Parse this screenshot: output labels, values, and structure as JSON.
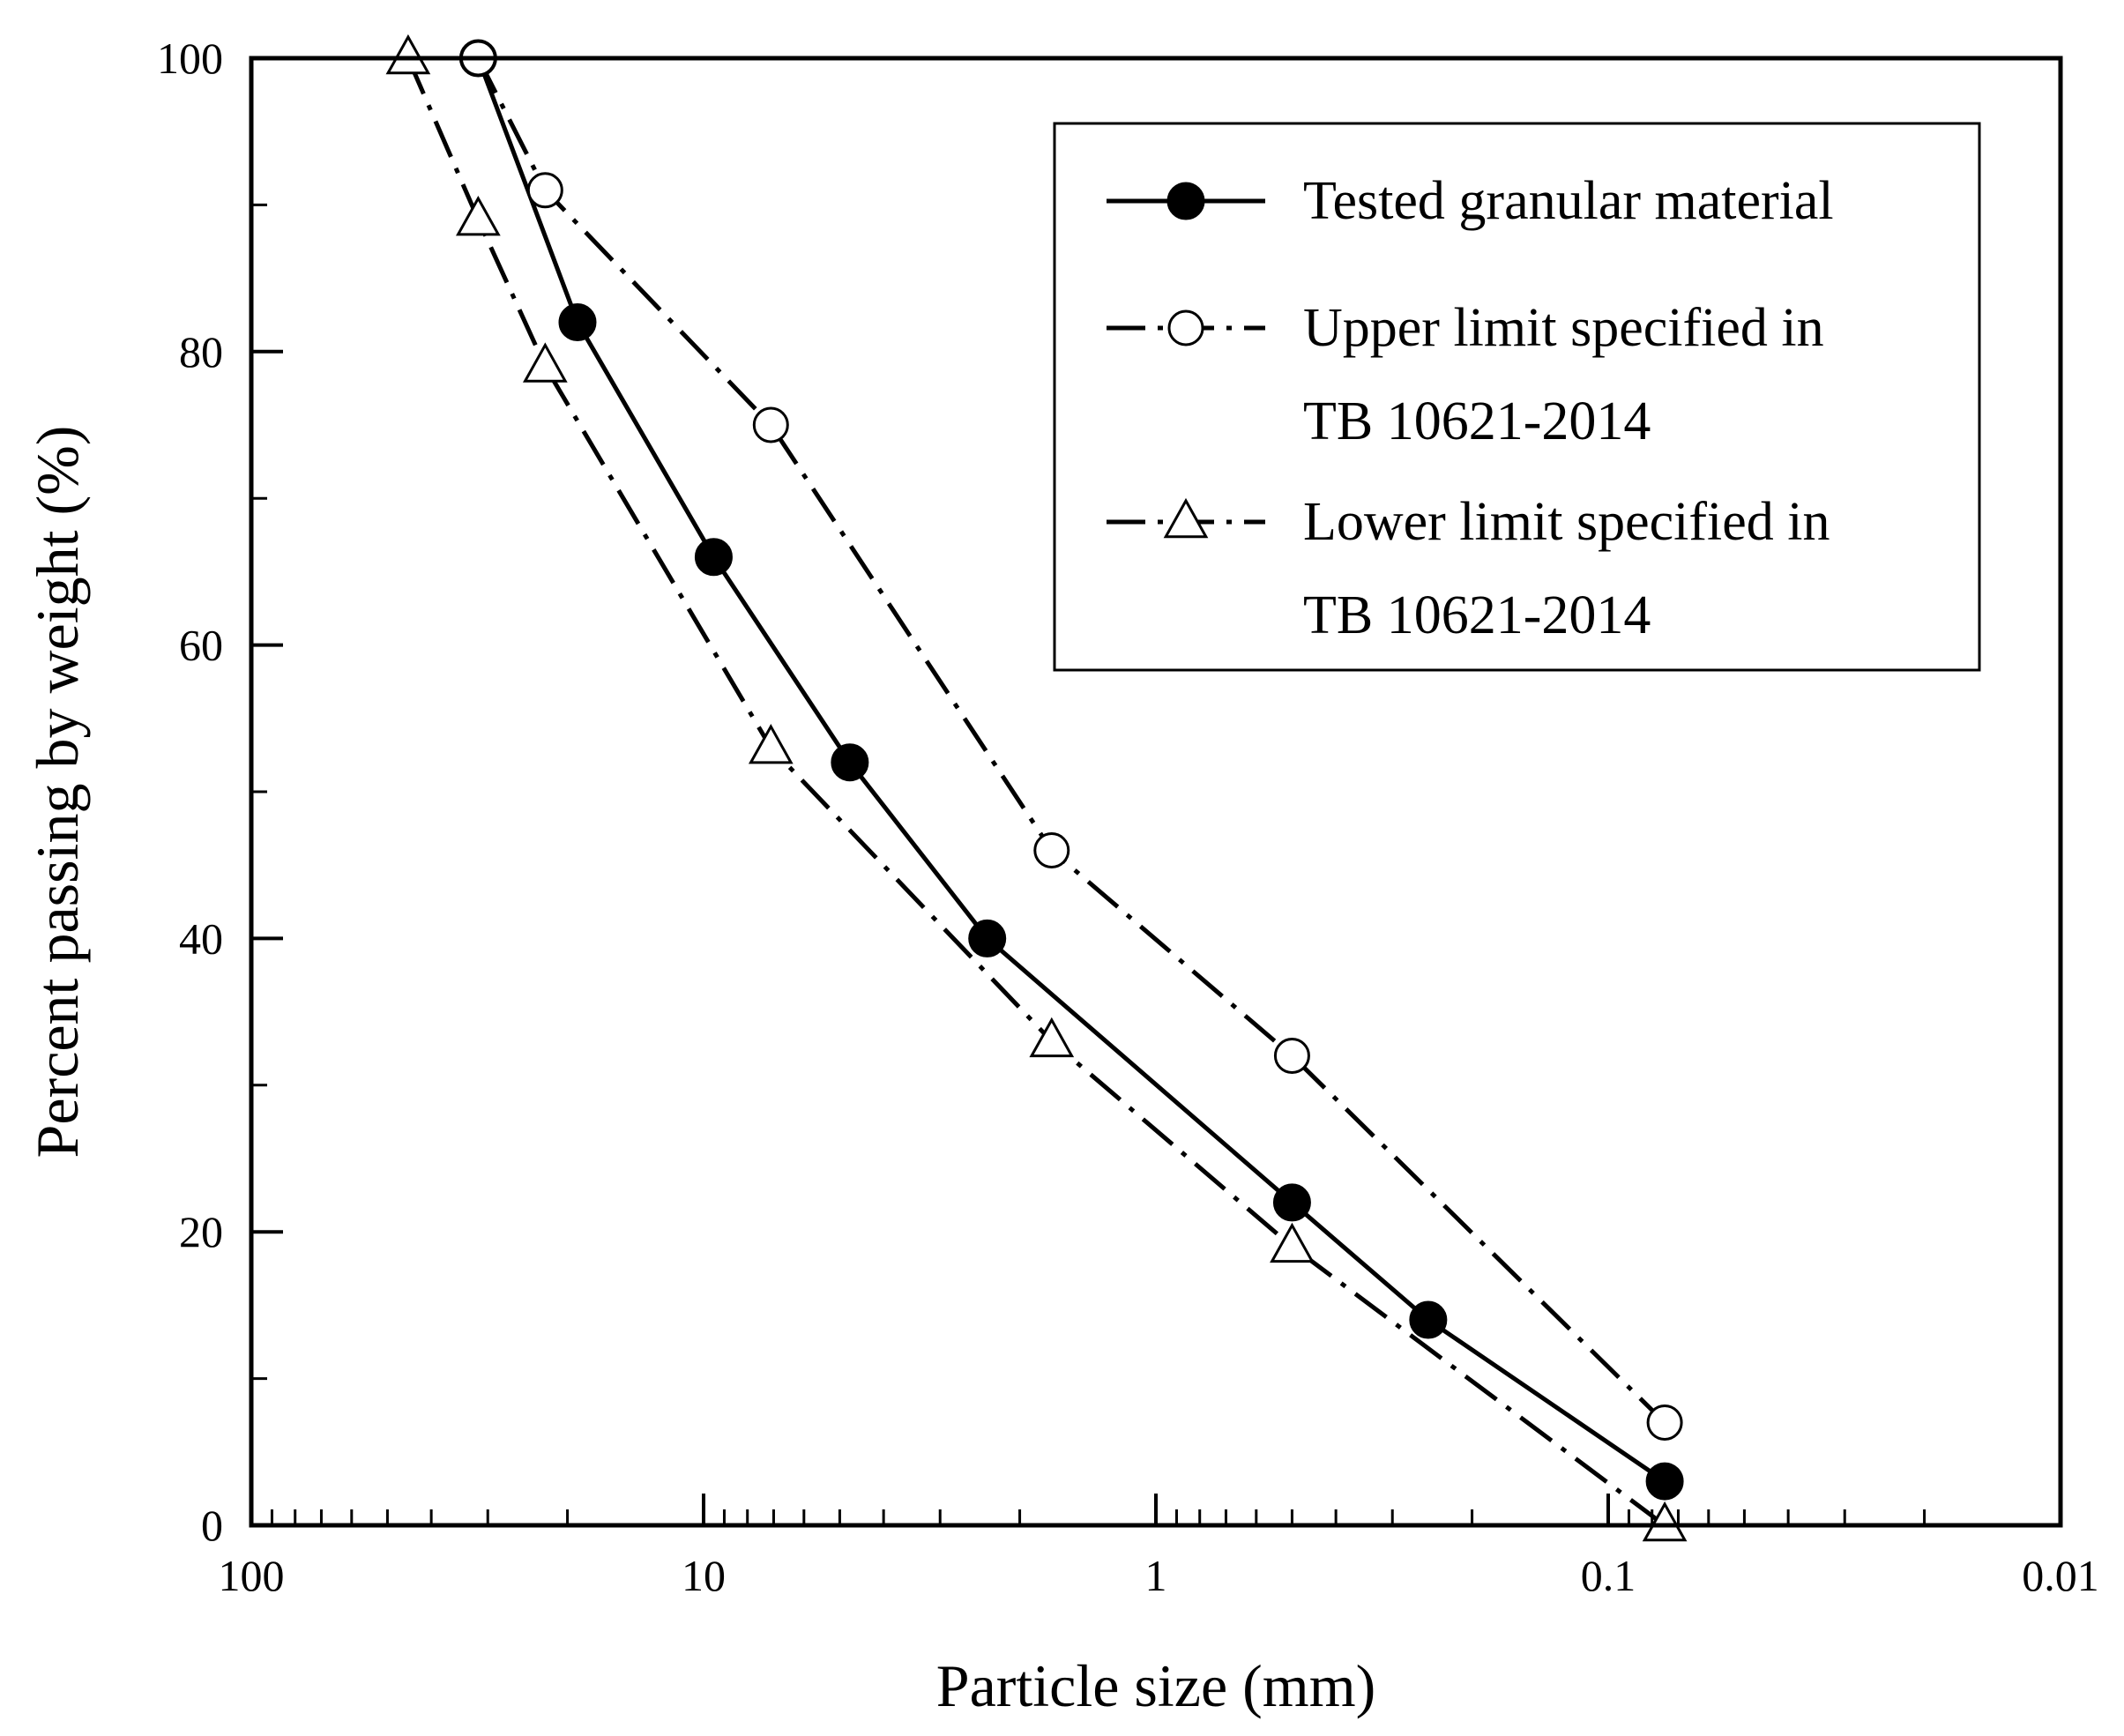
{
  "chart_data": {
    "type": "line",
    "xscale": "log",
    "xaxis_reversed": true,
    "xlabel": "Particle size (mm)",
    "ylabel": "Percent passing by weight (%)",
    "xlim": [
      100,
      0.01
    ],
    "ylim": [
      0,
      100
    ],
    "x_ticks": [
      {
        "value": 100,
        "label": "100"
      },
      {
        "value": 10,
        "label": "10"
      },
      {
        "value": 1,
        "label": "1"
      },
      {
        "value": 0.1,
        "label": "0.1"
      },
      {
        "value": 0.01,
        "label": "0.01"
      }
    ],
    "y_ticks": [
      {
        "value": 0,
        "label": "0"
      },
      {
        "value": 20,
        "label": "20"
      },
      {
        "value": 40,
        "label": "40"
      },
      {
        "value": 60,
        "label": "60"
      },
      {
        "value": 80,
        "label": "80"
      },
      {
        "value": 100,
        "label": "100"
      }
    ],
    "y_minor_ticks": [
      10,
      30,
      50,
      70,
      90
    ],
    "legend_position": "top-right",
    "series": [
      {
        "name": "Tested granular material",
        "legend_lines": [
          "Tested granular material"
        ],
        "marker": "filled-circle",
        "line_style": "solid",
        "x": [
          31.5,
          19,
          9.5,
          4.75,
          2.36,
          0.5,
          0.25,
          0.075
        ],
        "y": [
          100,
          82,
          66,
          52,
          40,
          22,
          14,
          3
        ]
      },
      {
        "name": "Upper limit specified in TB 10621-2014",
        "legend_lines": [
          "Upper limit specified in",
          "TB 10621-2014"
        ],
        "marker": "open-circle",
        "line_style": "dash-dot",
        "x": [
          31.5,
          22.4,
          7.1,
          1.7,
          0.5,
          0.075
        ],
        "y": [
          100,
          91,
          75,
          46,
          32,
          7
        ]
      },
      {
        "name": "Lower limit specified in TB 10621-2014",
        "legend_lines": [
          "Lower limit specified in",
          "TB 10621-2014"
        ],
        "marker": "open-triangle",
        "line_style": "dash-dot",
        "x": [
          45,
          31.5,
          22.4,
          7.1,
          1.7,
          0.5,
          0.075
        ],
        "y": [
          100,
          89,
          79,
          53,
          33,
          19,
          0
        ]
      }
    ]
  }
}
